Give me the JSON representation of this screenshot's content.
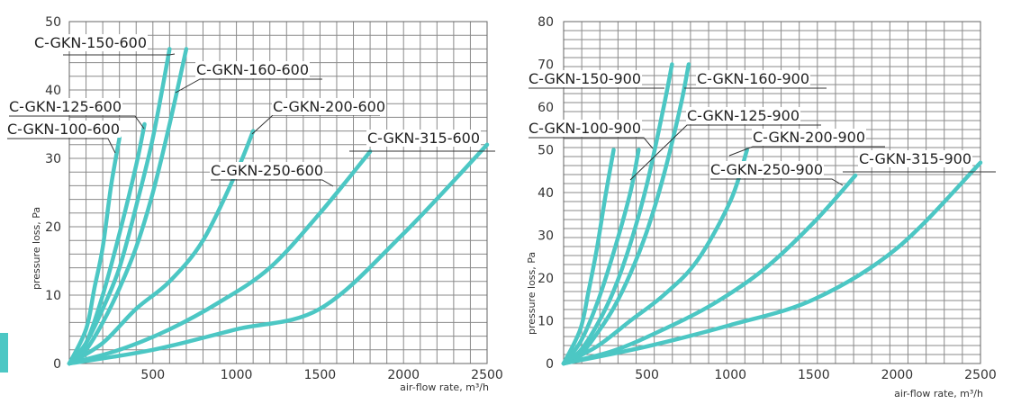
{
  "chart_data": [
    {
      "type": "line",
      "xlabel": "air-flow rate, m³/h",
      "ylabel": "pressure loss, Pa",
      "xlim": [
        0,
        2500
      ],
      "ylim": [
        0,
        50
      ],
      "x_ticks": [
        500,
        1000,
        1500,
        2000,
        2500
      ],
      "y_ticks": [
        0,
        10,
        20,
        30,
        40,
        50
      ],
      "grid": true,
      "series": [
        {
          "name": "C-GKN-100-600",
          "x": [
            0,
            100,
            150,
            200,
            250,
            300
          ],
          "y": [
            0,
            5,
            11,
            17,
            26,
            33
          ]
        },
        {
          "name": "C-GKN-125-600",
          "x": [
            0,
            100,
            200,
            300,
            400,
            450
          ],
          "y": [
            0,
            3,
            10,
            19,
            29,
            35
          ]
        },
        {
          "name": "C-GKN-150-600",
          "x": [
            0,
            100,
            200,
            300,
            400,
            500,
            600
          ],
          "y": [
            0,
            3,
            8,
            14,
            23,
            33,
            46
          ]
        },
        {
          "name": "C-GKN-160-600",
          "x": [
            0,
            100,
            200,
            300,
            400,
            500,
            600,
            700
          ],
          "y": [
            0,
            2,
            6,
            11,
            17,
            25,
            35,
            46
          ]
        },
        {
          "name": "C-GKN-200-600",
          "x": [
            0,
            200,
            400,
            600,
            800,
            1000,
            1100
          ],
          "y": [
            0,
            3,
            8,
            12,
            18,
            28,
            34
          ]
        },
        {
          "name": "C-GKN-250-600",
          "x": [
            0,
            300,
            600,
            900,
            1200,
            1500,
            1800
          ],
          "y": [
            0,
            2,
            5,
            9,
            14,
            22,
            31
          ]
        },
        {
          "name": "C-GKN-315-600",
          "x": [
            0,
            500,
            1000,
            1500,
            2000,
            2500
          ],
          "y": [
            0,
            2,
            5,
            8,
            19,
            32
          ]
        }
      ]
    },
    {
      "type": "line",
      "xlabel": "air-flow rate, m³/h",
      "ylabel": "pressure loss, Pa",
      "xlim": [
        0,
        2500
      ],
      "ylim": [
        0,
        80
      ],
      "x_ticks": [
        500,
        1000,
        1500,
        2000,
        2500
      ],
      "y_ticks": [
        0,
        10,
        20,
        30,
        40,
        50,
        60,
        70,
        80
      ],
      "grid": true,
      "series": [
        {
          "name": "C-GKN-100-900",
          "x": [
            0,
            100,
            150,
            200,
            250,
            300
          ],
          "y": [
            0,
            8,
            17,
            27,
            39,
            50
          ]
        },
        {
          "name": "C-GKN-125-900",
          "x": [
            0,
            100,
            200,
            300,
            400,
            450
          ],
          "y": [
            0,
            5,
            14,
            26,
            40,
            50
          ]
        },
        {
          "name": "C-GKN-150-900",
          "x": [
            0,
            100,
            200,
            300,
            400,
            500,
            600,
            650
          ],
          "y": [
            0,
            3,
            9,
            17,
            28,
            42,
            60,
            70
          ]
        },
        {
          "name": "C-GKN-160-900",
          "x": [
            0,
            100,
            200,
            300,
            400,
            500,
            600,
            700,
            750
          ],
          "y": [
            0,
            2,
            7,
            13,
            21,
            31,
            44,
            60,
            70
          ]
        },
        {
          "name": "C-GKN-200-900",
          "x": [
            0,
            200,
            400,
            600,
            800,
            1000,
            1100
          ],
          "y": [
            0,
            4,
            10,
            16,
            24,
            38,
            50
          ]
        },
        {
          "name": "C-GKN-250-900",
          "x": [
            0,
            300,
            600,
            900,
            1200,
            1500,
            1750
          ],
          "y": [
            0,
            3,
            8,
            14,
            22,
            33,
            44
          ]
        },
        {
          "name": "C-GKN-315-900",
          "x": [
            0,
            500,
            1000,
            1500,
            2000,
            2500
          ],
          "y": [
            0,
            4,
            9,
            15,
            27,
            47
          ]
        }
      ]
    }
  ],
  "charts_view": {
    "left_labels": [
      "C-GKN-150-600",
      "C-GKN-160-600",
      "C-GKN-125-600",
      "C-GKN-100-600",
      "C-GKN-200-600",
      "C-GKN-315-600",
      "C-GKN-250-600"
    ],
    "right_labels": [
      "C-GKN-150-900",
      "C-GKN-160-900",
      "C-GKN-100-900",
      "C-GKN-125-900",
      "C-GKN-200-900",
      "C-GKN-250-900",
      "C-GKN-315-900"
    ],
    "series_color": "#4cc7c4"
  }
}
